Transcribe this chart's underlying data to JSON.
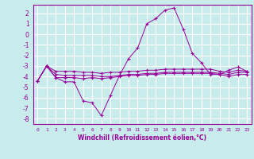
{
  "xlabel": "Windchill (Refroidissement éolien,°C)",
  "ylabel": "",
  "bg_color": "#c8ecec",
  "line_color": "#990099",
  "grid_color": "#ffffff",
  "xlim": [
    -0.5,
    23.5
  ],
  "ylim": [
    -8.5,
    2.8
  ],
  "xticks": [
    0,
    1,
    2,
    3,
    4,
    5,
    6,
    7,
    8,
    9,
    10,
    11,
    12,
    13,
    14,
    15,
    16,
    17,
    18,
    19,
    20,
    21,
    22,
    23
  ],
  "yticks": [
    -8,
    -7,
    -6,
    -5,
    -4,
    -3,
    -2,
    -1,
    0,
    1,
    2
  ],
  "series": {
    "main": [
      -4.4,
      -3.0,
      -4.1,
      -4.5,
      -4.5,
      -6.3,
      -6.5,
      -7.7,
      -5.8,
      -3.9,
      -2.3,
      -1.3,
      1.0,
      1.5,
      2.3,
      2.5,
      0.5,
      -1.8,
      -2.7,
      -3.8,
      -3.8,
      -3.4,
      -3.1,
      -3.5
    ],
    "line2": [
      -4.4,
      -3.0,
      -3.5,
      -3.5,
      -3.5,
      -3.6,
      -3.6,
      -3.7,
      -3.6,
      -3.6,
      -3.5,
      -3.5,
      -3.4,
      -3.4,
      -3.3,
      -3.3,
      -3.3,
      -3.3,
      -3.3,
      -3.3,
      -3.5,
      -3.6,
      -3.4,
      -3.5
    ],
    "line3": [
      -4.4,
      -3.0,
      -3.8,
      -3.9,
      -3.9,
      -3.9,
      -3.9,
      -4.0,
      -4.0,
      -3.9,
      -3.8,
      -3.8,
      -3.7,
      -3.7,
      -3.6,
      -3.6,
      -3.6,
      -3.6,
      -3.6,
      -3.6,
      -3.7,
      -3.8,
      -3.6,
      -3.6
    ],
    "line4": [
      -4.4,
      -3.0,
      -4.1,
      -4.1,
      -4.1,
      -4.2,
      -4.1,
      -4.2,
      -4.1,
      -4.0,
      -3.9,
      -3.9,
      -3.8,
      -3.8,
      -3.7,
      -3.7,
      -3.7,
      -3.7,
      -3.7,
      -3.7,
      -3.8,
      -4.0,
      -3.8,
      -3.8
    ]
  }
}
